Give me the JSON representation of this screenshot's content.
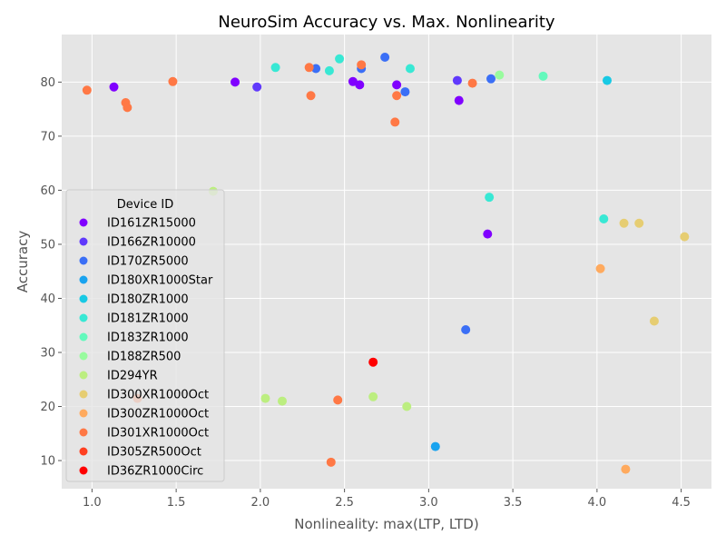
{
  "chart_data": {
    "type": "scatter",
    "title": "NeuroSim Accuracy vs. Max. Nonlinearity",
    "xlabel": "Nonlineality: max(LTP, LTD)",
    "ylabel": "Accuracy",
    "xlim": [
      0.82,
      4.68
    ],
    "ylim": [
      4.8,
      88.8
    ],
    "xticks": [
      1.0,
      1.5,
      2.0,
      2.5,
      3.0,
      3.5,
      4.0,
      4.5
    ],
    "xtick_labels": [
      "1.0",
      "1.5",
      "2.0",
      "2.5",
      "3.0",
      "3.5",
      "4.0",
      "4.5"
    ],
    "yticks": [
      10,
      20,
      30,
      40,
      50,
      60,
      70,
      80
    ],
    "ytick_labels": [
      "10",
      "20",
      "30",
      "40",
      "50",
      "60",
      "70",
      "80"
    ],
    "grid": true,
    "legend": {
      "title": "Device ID",
      "placement": "center-left"
    },
    "series": [
      {
        "name": "ID161ZR15000",
        "color": "#8000ff",
        "points": [
          [
            1.13,
            79.1
          ],
          [
            1.85,
            80.0
          ],
          [
            2.55,
            80.1
          ],
          [
            2.59,
            79.5
          ],
          [
            2.81,
            79.5
          ],
          [
            3.18,
            76.6
          ],
          [
            3.35,
            51.9
          ]
        ]
      },
      {
        "name": "ID166ZR10000",
        "color": "#6039fc",
        "points": [
          [
            1.98,
            79.1
          ],
          [
            3.17,
            80.3
          ]
        ]
      },
      {
        "name": "ID170ZR5000",
        "color": "#3b6ff6",
        "points": [
          [
            2.33,
            82.5
          ],
          [
            2.6,
            82.5
          ],
          [
            2.74,
            84.6
          ],
          [
            2.86,
            78.2
          ],
          [
            3.37,
            80.6
          ],
          [
            3.22,
            34.2
          ]
        ]
      },
      {
        "name": "ID180XR1000Star",
        "color": "#19a3ef",
        "points": [
          [
            3.04,
            12.6
          ]
        ]
      },
      {
        "name": "ID180ZR1000",
        "color": "#18c9e4",
        "points": [
          [
            4.06,
            80.3
          ]
        ]
      },
      {
        "name": "ID181ZR1000",
        "color": "#38e8d4",
        "points": [
          [
            2.09,
            82.7
          ],
          [
            2.41,
            82.1
          ],
          [
            2.47,
            84.3
          ],
          [
            2.89,
            82.5
          ],
          [
            3.36,
            58.7
          ],
          [
            4.04,
            54.7
          ]
        ]
      },
      {
        "name": "ID183ZR1000",
        "color": "#63f9bc",
        "points": [
          [
            3.68,
            81.1
          ]
        ]
      },
      {
        "name": "ID188ZR500",
        "color": "#98fb9e",
        "points": [
          [
            3.42,
            81.3
          ]
        ]
      },
      {
        "name": "ID294YR",
        "color": "#bcee80",
        "points": [
          [
            1.72,
            59.8
          ],
          [
            2.03,
            21.5
          ],
          [
            2.13,
            21.0
          ],
          [
            2.67,
            21.8
          ],
          [
            2.87,
            20.0
          ]
        ]
      },
      {
        "name": "ID300XR1000Oct",
        "color": "#e6cd72",
        "points": [
          [
            4.16,
            53.9
          ],
          [
            4.25,
            53.9
          ],
          [
            4.52,
            51.4
          ],
          [
            4.34,
            35.8
          ]
        ]
      },
      {
        "name": "ID300ZR1000Oct",
        "color": "#ffaa5e",
        "points": [
          [
            4.02,
            45.5
          ],
          [
            4.17,
            8.4
          ]
        ]
      },
      {
        "name": "ID301XR1000Oct",
        "color": "#ff7845",
        "points": [
          [
            0.97,
            78.5
          ],
          [
            1.2,
            76.2
          ],
          [
            1.21,
            75.3
          ],
          [
            1.48,
            80.1
          ],
          [
            2.29,
            82.7
          ],
          [
            2.3,
            77.5
          ],
          [
            2.6,
            83.2
          ],
          [
            2.81,
            77.5
          ],
          [
            2.8,
            72.6
          ],
          [
            3.26,
            79.8
          ],
          [
            1.27,
            21.5
          ],
          [
            2.46,
            21.2
          ],
          [
            2.42,
            9.7
          ]
        ]
      },
      {
        "name": "ID305ZR500Oct",
        "color": "#ff3f20",
        "points": []
      },
      {
        "name": "ID36ZR1000Circ",
        "color": "#ff0000",
        "points": [
          [
            2.67,
            28.2
          ]
        ]
      }
    ]
  }
}
